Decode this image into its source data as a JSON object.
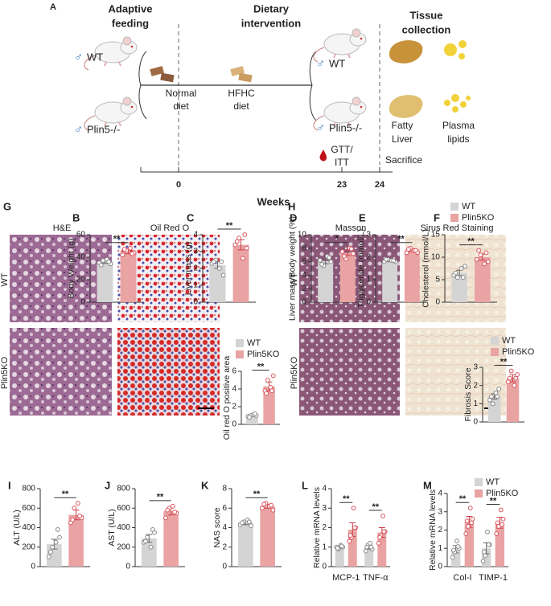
{
  "diagram": {
    "panel": "A",
    "sex": "♂",
    "stages": [
      [
        "Adaptive",
        "feeding"
      ],
      [
        "Dietary",
        "intervention"
      ],
      [
        "Tissue",
        "collection"
      ]
    ],
    "groups_start": [
      "WT",
      "Plin5-/-"
    ],
    "groups_end": [
      "WT",
      "Plin5-/-"
    ],
    "diets": [
      [
        "Normal",
        "diet"
      ],
      [
        "HFHC",
        "diet"
      ]
    ],
    "samples": [
      [
        "Fatty",
        "Liver"
      ],
      [
        "Plasma",
        "lipids"
      ]
    ],
    "events": [
      [
        "GTT/",
        "ITT"
      ],
      [
        "Sacrifice"
      ]
    ],
    "timeline": {
      "ticks": [
        0,
        23,
        24
      ],
      "label": "Weeks"
    }
  },
  "micrographs": [
    {
      "panel": "G",
      "columns": [
        "H&E",
        "Oil Red O"
      ],
      "rows": [
        "WT",
        "Plin5KO"
      ]
    },
    {
      "panel": "H",
      "columns": [
        "Masson",
        "Sirus Red Staining"
      ],
      "rows": [
        "WT",
        "Plin5KO"
      ]
    }
  ],
  "chart_data": [
    {
      "type": "bar",
      "panel": "B",
      "ylabel": "Body Weight (g)",
      "ylim": [
        0,
        60
      ],
      "yticks": [
        0,
        20,
        40,
        60
      ],
      "categories": [
        null
      ],
      "significance": [
        "**"
      ],
      "series": [
        {
          "name": "WT",
          "color": "#d4d4d4",
          "values": [
            36
          ],
          "errors": [
            1.5
          ],
          "points": [
            [
              35,
              37,
              38,
              34,
              33,
              36
            ]
          ]
        },
        {
          "name": "Plin5KO",
          "color": "#e9a3a3",
          "values": [
            45
          ],
          "errors": [
            2
          ],
          "points": [
            [
              42,
              46,
              48,
              44,
              47,
              43
            ]
          ]
        }
      ]
    },
    {
      "type": "bar",
      "panel": "C",
      "ylabel": "Liver mass (g)",
      "ylim": [
        0,
        4
      ],
      "yticks": [
        0,
        1,
        2,
        3,
        4
      ],
      "categories": [
        null
      ],
      "significance": [
        "**"
      ],
      "series": [
        {
          "name": "WT",
          "color": "#d4d4d4",
          "values": [
            2.2
          ],
          "errors": [
            0.2
          ],
          "points": [
            [
              2.3,
              2.5,
              2.0,
              1.6,
              2.4,
              2.4
            ]
          ]
        },
        {
          "name": "Plin5KO",
          "color": "#e9a3a3",
          "values": [
            3.4
          ],
          "errors": [
            0.3
          ],
          "points": [
            [
              3.4,
              3.8,
              2.6,
              3.2,
              3.6,
              4.0
            ]
          ]
        }
      ]
    },
    {
      "type": "bar",
      "panel": "D",
      "ylabel": "Liver mass/Body weight (%)",
      "ylim": [
        0,
        10
      ],
      "yticks": [
        0,
        2,
        4,
        6,
        8,
        10
      ],
      "categories": [
        null
      ],
      "significance": [
        "*"
      ],
      "series": [
        {
          "name": "WT",
          "color": "#d4d4d4",
          "values": [
            6.1
          ],
          "errors": [
            0.4
          ],
          "points": [
            [
              6.2,
              5.4,
              6.8,
              6.0,
              5.6,
              6.6
            ]
          ]
        },
        {
          "name": "Plin5KO",
          "color": "#e9a3a3",
          "values": [
            7.3
          ],
          "errors": [
            0.4
          ],
          "points": [
            [
              7.5,
              6.4,
              8.0,
              7.2,
              6.8,
              7.9
            ]
          ]
        }
      ]
    },
    {
      "type": "bar",
      "panel": "E",
      "ylabel": "Triglyceride (mmol/L)",
      "ylim": [
        0,
        3
      ],
      "yticks": [
        0,
        1,
        2,
        3
      ],
      "categories": [
        null
      ],
      "significance": [
        "**"
      ],
      "series": [
        {
          "name": "WT",
          "color": "#d4d4d4",
          "values": [
            1.85
          ],
          "errors": [
            0.05
          ],
          "points": [
            [
              1.8,
              1.9,
              1.85,
              1.8,
              1.9,
              1.85
            ]
          ]
        },
        {
          "name": "Plin5KO",
          "color": "#e9a3a3",
          "values": [
            2.3
          ],
          "errors": [
            0.06
          ],
          "points": [
            [
              2.2,
              2.4,
              2.3,
              2.2,
              2.35,
              2.3
            ]
          ]
        }
      ]
    },
    {
      "type": "bar",
      "panel": "F",
      "ylabel": "Cholesterol (mmol/L)",
      "ylim": [
        0,
        15
      ],
      "yticks": [
        0,
        5,
        10,
        15
      ],
      "categories": [
        null
      ],
      "significance": [
        "**"
      ],
      "legend": true,
      "series": [
        {
          "name": "WT",
          "color": "#d4d4d4",
          "values": [
            6.5
          ],
          "errors": [
            0.6
          ],
          "points": [
            [
              6.0,
              5.5,
              7.5,
              8.0,
              6.5,
              5.5
            ]
          ]
        },
        {
          "name": "Plin5KO",
          "color": "#e9a3a3",
          "values": [
            10
          ],
          "errors": [
            0.7
          ],
          "points": [
            [
              9.5,
              10.5,
              8.5,
              9.0,
              11.5,
              11.0
            ]
          ]
        }
      ]
    },
    {
      "type": "bar",
      "ylabel": "Oil red O positive area",
      "ylim": [
        0,
        6
      ],
      "yticks": [
        0,
        2,
        4,
        6
      ],
      "categories": [
        null
      ],
      "significance": [
        "**"
      ],
      "legend": true,
      "series": [
        {
          "name": "WT",
          "color": "#d4d4d4",
          "values": [
            1.0
          ],
          "errors": [
            0.1
          ],
          "points": [
            [
              0.9,
              1.0,
              1.1,
              1.0,
              0.8,
              1.2
            ]
          ]
        },
        {
          "name": "Plin5KO",
          "color": "#e9a3a3",
          "values": [
            4.3
          ],
          "errors": [
            0.5
          ],
          "points": [
            [
              3.8,
              5.0,
              4.2,
              5.5,
              3.5,
              3.8
            ]
          ]
        }
      ]
    },
    {
      "type": "bar",
      "ylabel": "Fibrosis Score",
      "ylim": [
        0,
        3
      ],
      "yticks": [
        0,
        1,
        2,
        3
      ],
      "categories": [
        null
      ],
      "significance": [
        "**"
      ],
      "legend": true,
      "series": [
        {
          "name": "WT",
          "color": "#d4d4d4",
          "values": [
            1.4
          ],
          "errors": [
            0.15
          ],
          "points": [
            [
              1.2,
              1.0,
              1.6,
              1.8,
              1.4,
              1.4
            ]
          ]
        },
        {
          "name": "Plin5KO",
          "color": "#e9a3a3",
          "values": [
            2.4
          ],
          "errors": [
            0.2
          ],
          "points": [
            [
              2.2,
              2.8,
              2.0,
              2.6,
              2.4,
              2.4
            ]
          ]
        }
      ]
    },
    {
      "type": "bar",
      "panel": "I",
      "ylabel": "ALT (U/L)",
      "ylim": [
        0,
        800
      ],
      "yticks": [
        0,
        200,
        400,
        600,
        800
      ],
      "categories": [
        null
      ],
      "significance": [
        "**"
      ],
      "series": [
        {
          "name": "WT",
          "color": "#d4d4d4",
          "values": [
            230
          ],
          "errors": [
            50
          ],
          "points": [
            [
              100,
              200,
              250,
              300,
              150,
              380
            ]
          ]
        },
        {
          "name": "Plin5KO",
          "color": "#e9a3a3",
          "values": [
            530
          ],
          "errors": [
            50
          ],
          "points": [
            [
              450,
              600,
              650,
              500,
              480,
              520
            ]
          ]
        }
      ]
    },
    {
      "type": "bar",
      "panel": "J",
      "ylabel": "AST (U/L)",
      "ylim": [
        0,
        800
      ],
      "yticks": [
        0,
        200,
        400,
        600,
        800
      ],
      "categories": [
        null
      ],
      "significance": [
        "**"
      ],
      "series": [
        {
          "name": "WT",
          "color": "#d4d4d4",
          "values": [
            290
          ],
          "errors": [
            40
          ],
          "points": [
            [
              250,
              300,
              200,
              350,
              260,
              380
            ]
          ]
        },
        {
          "name": "Plin5KO",
          "color": "#e9a3a3",
          "values": [
            570
          ],
          "errors": [
            40
          ],
          "points": [
            [
              500,
              600,
              620,
              550,
              580,
              560
            ]
          ]
        }
      ]
    },
    {
      "type": "bar",
      "panel": "K",
      "ylabel": "NAS score",
      "ylim": [
        0,
        8
      ],
      "yticks": [
        0,
        2,
        4,
        6,
        8
      ],
      "categories": [
        null
      ],
      "significance": [
        "**"
      ],
      "series": [
        {
          "name": "WT",
          "color": "#d4d4d4",
          "values": [
            4.5
          ],
          "errors": [
            0.2
          ],
          "points": [
            [
              4.3,
              4.6,
              4.8,
              4.2,
              4.5,
              4.6
            ]
          ]
        },
        {
          "name": "Plin5KO",
          "color": "#e9a3a3",
          "values": [
            6.2
          ],
          "errors": [
            0.2
          ],
          "points": [
            [
              6.0,
              6.5,
              6.2,
              5.8,
              6.4,
              6.3
            ]
          ]
        }
      ]
    },
    {
      "type": "bar",
      "panel": "L",
      "ylabel": "Relative mRNA levels",
      "ylim": [
        0,
        4
      ],
      "yticks": [
        0,
        1,
        2,
        3,
        4
      ],
      "categories": [
        "MCP-1",
        "TNF-α"
      ],
      "significance": [
        "**",
        "**"
      ],
      "series": [
        {
          "name": "WT",
          "color": "#d4d4d4",
          "values": [
            1.0,
            1.0
          ],
          "errors": [
            0.05,
            0.1
          ],
          "points": [
            [
              1.0,
              0.9,
              1.1,
              1.0,
              0.95,
              1.05
            ],
            [
              0.8,
              1.1,
              1.2,
              0.9,
              1.0,
              1.0
            ]
          ]
        },
        {
          "name": "Plin5KO",
          "color": "#e9a3a3",
          "values": [
            1.9,
            1.75
          ],
          "errors": [
            0.35,
            0.25
          ],
          "points": [
            [
              1.3,
              1.5,
              3.0,
              2.0,
              1.6,
              2.0
            ],
            [
              1.2,
              1.6,
              2.6,
              1.8,
              1.5,
              1.8
            ]
          ]
        }
      ]
    },
    {
      "type": "bar",
      "panel": "M",
      "ylabel": "Relative mRNA levels",
      "ylim": [
        0,
        4
      ],
      "yticks": [
        0,
        1,
        2,
        3,
        4
      ],
      "categories": [
        "Col-I",
        "TIMP-1"
      ],
      "significance": [
        "**",
        "**"
      ],
      "legend": true,
      "series": [
        {
          "name": "WT",
          "color": "#d4d4d4",
          "values": [
            0.95,
            1.0
          ],
          "errors": [
            0.2,
            0.3
          ],
          "points": [
            [
              0.5,
              0.8,
              1.4,
              1.0,
              0.9,
              1.1
            ],
            [
              0.3,
              0.6,
              1.9,
              1.2,
              0.8,
              1.2
            ]
          ]
        },
        {
          "name": "Plin5KO",
          "color": "#e9a3a3",
          "values": [
            2.45,
            2.4
          ],
          "errors": [
            0.3,
            0.3
          ],
          "points": [
            [
              1.8,
              2.2,
              3.2,
              2.6,
              2.5,
              2.4
            ],
            [
              1.8,
              2.2,
              3.1,
              2.6,
              2.4,
              2.3
            ]
          ]
        }
      ]
    }
  ]
}
